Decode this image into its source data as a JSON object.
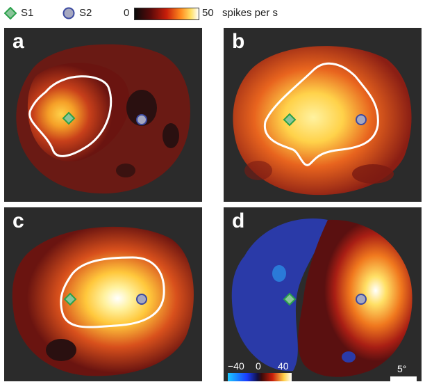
{
  "legend": {
    "s1_label": "S1",
    "s2_label": "S2",
    "scale_min": "0",
    "scale_max": "50",
    "scale_unit": "spikes per s",
    "s1_color": "#3cb43c",
    "s2_color": "#4a5aa8"
  },
  "panels": [
    {
      "letter": "a"
    },
    {
      "letter": "b"
    },
    {
      "letter": "c"
    },
    {
      "letter": "d"
    }
  ],
  "diff_scale": {
    "min": "−40",
    "mid": "0",
    "max": "40"
  },
  "scale_bar": {
    "label": "5°"
  }
}
